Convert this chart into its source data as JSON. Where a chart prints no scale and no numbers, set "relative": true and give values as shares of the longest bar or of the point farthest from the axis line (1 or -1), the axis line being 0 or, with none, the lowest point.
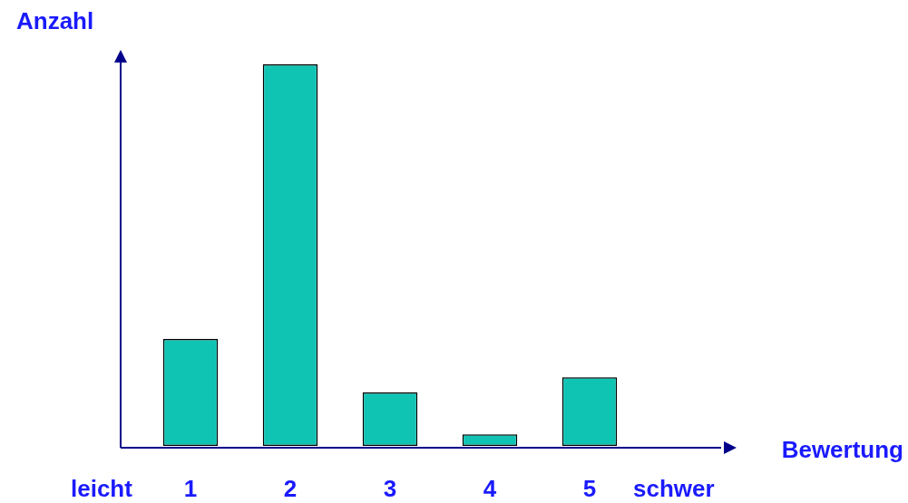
{
  "chart_data": {
    "type": "bar",
    "xlabel": "Bewertung",
    "ylabel": "Anzahl",
    "categories": [
      "1",
      "2",
      "3",
      "4",
      "5"
    ],
    "values": [
      0.28,
      1,
      0.14,
      0.03,
      0.18
    ],
    "color": "#10c4b4",
    "relative": true,
    "grid": false,
    "legend": false,
    "annotations": [
      "leicht",
      "schwer"
    ]
  }
}
